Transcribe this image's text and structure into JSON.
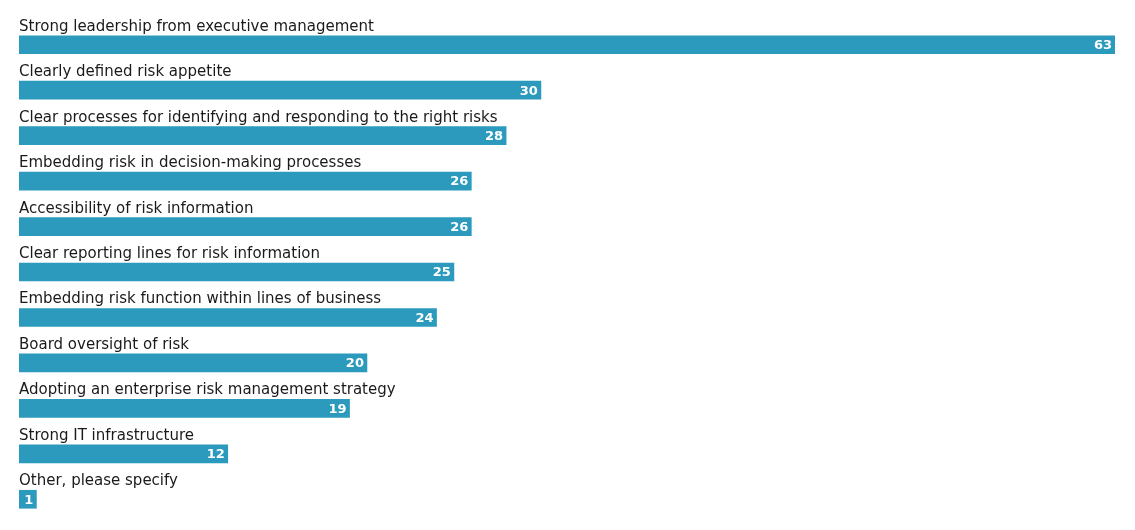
{
  "chart_data": {
    "type": "bar",
    "orientation": "horizontal",
    "categories": [
      "Strong leadership from executive management",
      "Clearly defined risk appetite",
      "Clear processes for identifying and responding to the right risks",
      "Embedding risk in decision-making processes",
      "Accessibility of risk information",
      "Clear reporting lines for risk information",
      "Embedding risk function within lines of business",
      "Board oversight of risk",
      "Adopting an enterprise risk management strategy",
      "Strong IT infrastructure",
      "Other, please specify"
    ],
    "values": [
      63,
      30,
      28,
      26,
      26,
      25,
      24,
      20,
      19,
      12,
      1
    ],
    "color": "#2b9abd",
    "data_labels": true
  }
}
